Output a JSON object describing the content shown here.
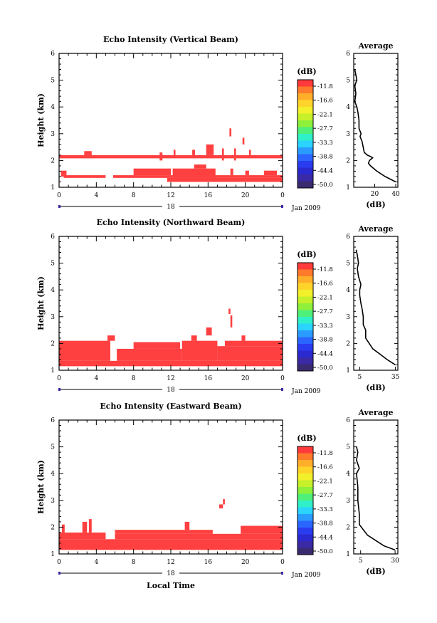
{
  "figure": {
    "date_label": "Jan 2009",
    "day_label": "18",
    "bottom_xlabel": "Local Time",
    "ylabel": "Height (km)",
    "avg_title": "Average",
    "avg_xlabel": "(dB)",
    "colorbar_title": "(dB)",
    "colorbar_levels": [
      "-11.8",
      "-16.6",
      "-22.1",
      "-27.7",
      "-33.3",
      "-38.8",
      "-44.4",
      "-50.0"
    ],
    "colorbar_colors": [
      "#ff3a3a",
      "#ff7a2a",
      "#ffae2a",
      "#ffd42a",
      "#f2f02a",
      "#c6f02a",
      "#8ef03a",
      "#4ff07a",
      "#2ff0c8",
      "#2ad4ff",
      "#2a9cff",
      "#2a66ff",
      "#2a3cf0",
      "#2a2ad0",
      "#3a2aa6",
      "#3a2a70"
    ],
    "data_color": "#ff4040"
  },
  "chart_data": [
    {
      "type": "heatmap",
      "title": "Echo Intensity (Vertical Beam)",
      "xlabel": "Local Time",
      "ylabel": "Height (km)",
      "x_ticks": [
        "0",
        "4",
        "8",
        "12",
        "16",
        "20",
        "0"
      ],
      "y_ticks": [
        "1",
        "2",
        "3",
        "4",
        "5",
        "6"
      ],
      "xlim": [
        0,
        24
      ],
      "ylim": [
        1,
        6
      ],
      "value_color_level": "-11.8",
      "echo_regions": [
        {
          "t0": 0.0,
          "t1": 24.0,
          "h0": 2.08,
          "h1": 2.2
        },
        {
          "t0": 2.7,
          "t1": 3.5,
          "h0": 2.2,
          "h1": 2.35
        },
        {
          "t0": 0.2,
          "t1": 0.8,
          "h0": 1.4,
          "h1": 1.62
        },
        {
          "t0": 0.5,
          "t1": 5.0,
          "h0": 1.35,
          "h1": 1.45
        },
        {
          "t0": 5.8,
          "t1": 24.0,
          "h0": 1.35,
          "h1": 1.45
        },
        {
          "t0": 8.0,
          "t1": 12.0,
          "h0": 1.45,
          "h1": 1.7
        },
        {
          "t0": 11.6,
          "t1": 24.0,
          "h0": 1.2,
          "h1": 1.35
        },
        {
          "t0": 12.2,
          "t1": 16.8,
          "h0": 1.35,
          "h1": 1.7
        },
        {
          "t0": 14.5,
          "t1": 15.8,
          "h0": 1.7,
          "h1": 1.85
        },
        {
          "t0": 15.8,
          "t1": 16.6,
          "h0": 2.2,
          "h1": 2.6
        },
        {
          "t0": 18.4,
          "t1": 18.7,
          "h0": 1.45,
          "h1": 1.7
        },
        {
          "t0": 20.0,
          "t1": 20.4,
          "h0": 1.45,
          "h1": 1.62
        },
        {
          "t0": 22.0,
          "t1": 23.4,
          "h0": 1.45,
          "h1": 1.62
        },
        {
          "t0": 17.5,
          "t1": 17.7,
          "h0": 2.0,
          "h1": 2.45
        },
        {
          "t0": 18.8,
          "t1": 19.0,
          "h0": 2.0,
          "h1": 2.45
        },
        {
          "t0": 14.3,
          "t1": 14.6,
          "h0": 2.2,
          "h1": 2.4
        },
        {
          "t0": 10.8,
          "t1": 11.1,
          "h0": 2.0,
          "h1": 2.3
        },
        {
          "t0": 12.3,
          "t1": 12.5,
          "h0": 2.2,
          "h1": 2.4
        },
        {
          "t0": 18.3,
          "t1": 18.5,
          "h0": 2.9,
          "h1": 3.2
        },
        {
          "t0": 19.7,
          "t1": 19.9,
          "h0": 2.6,
          "h1": 2.85
        },
        {
          "t0": 20.4,
          "t1": 20.6,
          "h0": 2.2,
          "h1": 2.4
        }
      ],
      "average_profile": {
        "xlabel": "(dB)",
        "x_ticks": [
          "20",
          "40"
        ],
        "x_tick_values": [
          20,
          40
        ],
        "xlim": [
          0,
          42
        ],
        "height": [
          1.2,
          1.4,
          1.6,
          1.8,
          1.9,
          2.0,
          2.1,
          2.15,
          2.2,
          2.3,
          2.5,
          2.7,
          2.9,
          3.0,
          3.2,
          3.5,
          3.8,
          4.0,
          4.2,
          4.5,
          4.8,
          5.0,
          5.2,
          5.4
        ],
        "value": [
          40,
          30,
          22,
          16,
          14,
          15,
          18,
          16,
          13,
          10,
          9,
          8,
          6,
          7,
          5,
          5,
          4,
          3,
          1,
          2,
          1,
          3,
          2,
          1
        ]
      }
    },
    {
      "type": "heatmap",
      "title": "Echo Intensity (Northward Beam)",
      "xlabel": "Local Time",
      "ylabel": "Height (km)",
      "x_ticks": [
        "0",
        "4",
        "8",
        "12",
        "16",
        "20",
        "0"
      ],
      "y_ticks": [
        "1",
        "2",
        "3",
        "4",
        "5",
        "6"
      ],
      "xlim": [
        0,
        24
      ],
      "ylim": [
        1,
        6
      ],
      "value_color_level": "-11.8",
      "echo_regions": [
        {
          "t0": 0.0,
          "t1": 24.0,
          "h0": 1.15,
          "h1": 1.35
        },
        {
          "t0": 0.0,
          "t1": 5.5,
          "h0": 1.35,
          "h1": 2.1
        },
        {
          "t0": 5.2,
          "t1": 6.0,
          "h0": 2.1,
          "h1": 2.3
        },
        {
          "t0": 6.2,
          "t1": 13.2,
          "h0": 1.35,
          "h1": 1.8
        },
        {
          "t0": 8.0,
          "t1": 13.0,
          "h0": 1.8,
          "h1": 2.05
        },
        {
          "t0": 13.2,
          "t1": 17.0,
          "h0": 1.35,
          "h1": 2.1
        },
        {
          "t0": 14.2,
          "t1": 14.8,
          "h0": 2.1,
          "h1": 2.3
        },
        {
          "t0": 15.8,
          "t1": 16.4,
          "h0": 2.3,
          "h1": 2.6
        },
        {
          "t0": 17.0,
          "t1": 24.0,
          "h0": 1.35,
          "h1": 1.9
        },
        {
          "t0": 17.8,
          "t1": 24.0,
          "h0": 1.9,
          "h1": 2.1
        },
        {
          "t0": 19.6,
          "t1": 20.0,
          "h0": 2.1,
          "h1": 2.3
        },
        {
          "t0": 18.2,
          "t1": 18.4,
          "h0": 3.1,
          "h1": 3.3
        },
        {
          "t0": 18.4,
          "t1": 18.6,
          "h0": 2.6,
          "h1": 3.05
        }
      ],
      "average_profile": {
        "xlabel": "(dB)",
        "x_ticks": [
          "5",
          "35"
        ],
        "x_tick_values": [
          5,
          35
        ],
        "xlim": [
          0,
          37
        ],
        "height": [
          1.2,
          1.4,
          1.6,
          1.8,
          2.0,
          2.2,
          2.5,
          2.7,
          3.0,
          3.3,
          3.5,
          3.8,
          4.0,
          4.2,
          4.5,
          4.8,
          5.0,
          5.3,
          5.5
        ],
        "value": [
          35,
          28,
          22,
          16,
          13,
          10,
          10,
          8,
          8,
          7,
          6,
          5,
          5,
          6,
          4,
          3,
          4,
          3,
          2
        ]
      }
    },
    {
      "type": "heatmap",
      "title": "Echo Intensity (Eastward Beam)",
      "xlabel": "Local Time",
      "ylabel": "Height (km)",
      "x_ticks": [
        "0",
        "4",
        "8",
        "12",
        "16",
        "20",
        "0"
      ],
      "y_ticks": [
        "1",
        "2",
        "3",
        "4",
        "5",
        "6"
      ],
      "xlim": [
        0,
        24
      ],
      "ylim": [
        1,
        6
      ],
      "value_color_level": "-11.8",
      "echo_regions": [
        {
          "t0": 0.0,
          "t1": 24.0,
          "h0": 1.15,
          "h1": 1.55
        },
        {
          "t0": 0.0,
          "t1": 5.0,
          "h0": 1.55,
          "h1": 1.8
        },
        {
          "t0": 0.3,
          "t1": 0.6,
          "h0": 1.8,
          "h1": 2.1
        },
        {
          "t0": 2.5,
          "t1": 3.0,
          "h0": 1.8,
          "h1": 2.2
        },
        {
          "t0": 3.2,
          "t1": 3.5,
          "h0": 1.8,
          "h1": 2.3
        },
        {
          "t0": 6.0,
          "t1": 24.0,
          "h0": 1.55,
          "h1": 1.75
        },
        {
          "t0": 6.0,
          "t1": 16.5,
          "h0": 1.75,
          "h1": 1.9
        },
        {
          "t0": 13.5,
          "t1": 14.0,
          "h0": 1.9,
          "h1": 2.2
        },
        {
          "t0": 17.2,
          "t1": 17.6,
          "h0": 2.7,
          "h1": 2.85
        },
        {
          "t0": 17.6,
          "t1": 17.8,
          "h0": 2.85,
          "h1": 3.05
        },
        {
          "t0": 19.5,
          "t1": 24.0,
          "h0": 1.75,
          "h1": 2.05
        }
      ],
      "average_profile": {
        "xlabel": "(dB)",
        "x_ticks": [
          "5",
          "30"
        ],
        "x_tick_values": [
          5,
          30
        ],
        "xlim": [
          0,
          32
        ],
        "height": [
          1.15,
          1.3,
          1.5,
          1.7,
          1.9,
          2.1,
          2.5,
          3.0,
          3.5,
          4.0,
          4.2,
          4.5,
          4.8,
          5.0
        ],
        "value": [
          30,
          22,
          16,
          10,
          7,
          4,
          4,
          3,
          3,
          2,
          4,
          2,
          3,
          2
        ]
      }
    }
  ]
}
